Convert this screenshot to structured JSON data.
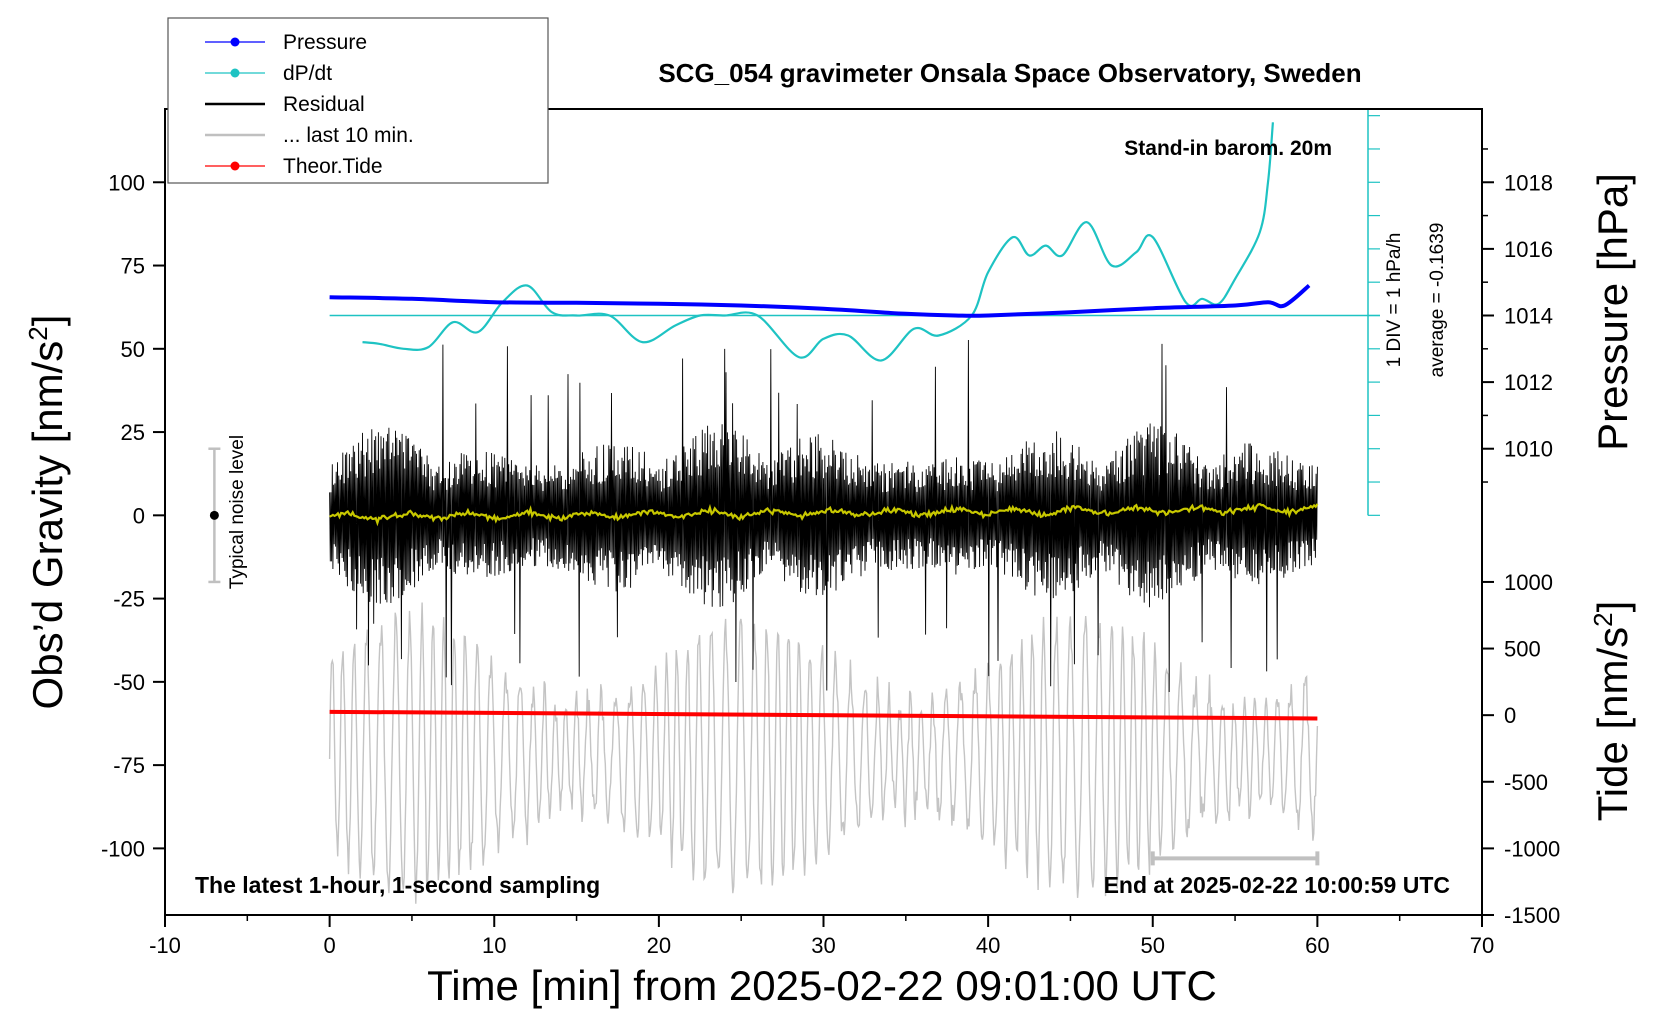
{
  "chart_data": {
    "type": "line",
    "title": "SCG_054 gravimeter Onsala Space Observatory, Sweden",
    "xlabel": "Time [min] from 2025-02-22 09:01:00 UTC",
    "ylabel_left": "Obs’d Gravity [nm/s",
    "ylabel_left_sup": "2",
    "ylabel_left_close": "]",
    "ylabel_right_top": "Pressure [hPa]",
    "ylabel_right_bottom": "Tide [nm/s",
    "ylabel_right_bottom_sup": "2",
    "ylabel_right_bottom_close": "]",
    "xlim": [
      -10,
      70
    ],
    "ylim_left": [
      -120,
      122
    ],
    "x_ticks": [
      "-10",
      "0",
      "10",
      "20",
      "30",
      "40",
      "50",
      "60",
      "70"
    ],
    "y_left_ticks": [
      "-100",
      "-75",
      "-50",
      "-25",
      "0",
      "25",
      "50",
      "75",
      "100"
    ],
    "pressure_ticks": [
      "1010",
      "1012",
      "1014",
      "1016",
      "1018"
    ],
    "tide_ticks": [
      "-1500",
      "-1000",
      "-500",
      "0",
      "500",
      "1000"
    ],
    "annotations": {
      "barometer": "Stand-in barom. 20m",
      "dpdt_scale": "1 DIV = 1 hPa/h",
      "dpdt_average": "average = -0.1639",
      "noise": "Typical noise level",
      "bottom_left": "The latest 1-hour, 1-second sampling",
      "bottom_right": "End at 2025-02-22 10:00:59 UTC"
    },
    "legend": {
      "placement": "top-left",
      "entries": [
        {
          "label": "Pressure",
          "color": "#0000ff"
        },
        {
          "label": "dP/dt",
          "color": "#1ec3c3"
        },
        {
          "label": "Residual",
          "color": "#000000"
        },
        {
          "label": "... last 10 min.",
          "color": "#c0c0c0"
        },
        {
          "label": "Theor.Tide",
          "color": "#ff0000"
        }
      ]
    },
    "series": [
      {
        "name": "Pressure",
        "units": "hPa",
        "x": [
          0,
          5,
          10,
          15,
          20,
          25,
          30,
          35,
          38,
          40,
          45,
          50,
          55,
          57,
          58,
          59.5
        ],
        "values": [
          1014.55,
          1014.5,
          1014.4,
          1014.38,
          1014.35,
          1014.3,
          1014.2,
          1014.05,
          1014.0,
          1014.0,
          1014.1,
          1014.22,
          1014.3,
          1014.4,
          1014.3,
          1014.9
        ]
      },
      {
        "name": "dP/dt",
        "units": "hPa/h (1 DIV = 1 hPa/h)",
        "x": [
          2,
          3,
          4.5,
          6,
          7.5,
          9,
          10.5,
          12,
          13.5,
          15,
          17,
          19,
          21,
          22.5,
          24,
          26,
          28.5,
          30,
          31.5,
          33.5,
          35.5,
          37,
          39,
          40,
          41.5,
          42.5,
          43.5,
          44.5,
          46,
          47.5,
          49,
          50,
          52,
          53,
          54,
          55,
          56.5,
          57,
          57.3
        ],
        "values": [
          -0.8,
          -0.85,
          -1.0,
          -0.95,
          -0.2,
          -0.5,
          0.4,
          0.9,
          0.1,
          0.0,
          0.0,
          -0.8,
          -0.3,
          0.0,
          0.0,
          0.0,
          -1.25,
          -0.7,
          -0.6,
          -1.35,
          -0.4,
          -0.6,
          0.0,
          1.3,
          2.35,
          1.8,
          2.1,
          1.8,
          2.8,
          1.5,
          1.9,
          2.35,
          0.4,
          0.5,
          0.35,
          1.1,
          2.5,
          4.0,
          5.8
        ]
      },
      {
        "name": "Residual",
        "units": "nm/s2",
        "x": [
          0,
          60
        ],
        "envelope_typical": 20,
        "envelope_max": 54
      },
      {
        "name": "... last 10 min.",
        "units": "nm/s2",
        "x": [
          50,
          60
        ],
        "values": [
          -103,
          -103
        ]
      },
      {
        "name": "Theor.Tide",
        "units": "nm/s2",
        "x": [
          0,
          60
        ],
        "values": [
          25,
          -25
        ]
      }
    ],
    "noise_level": {
      "x": -7,
      "center": 0,
      "half_range": 20
    }
  }
}
